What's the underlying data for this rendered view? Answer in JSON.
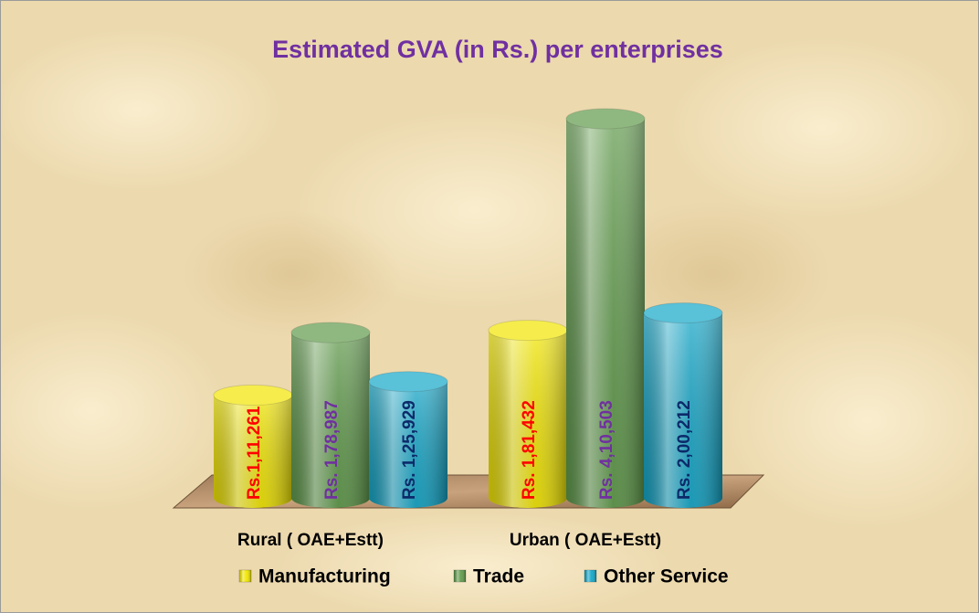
{
  "chart_data": {
    "type": "bar",
    "title": "Estimated GVA (in Rs.) per enterprises",
    "categories": [
      "Rural ( OAE+Estt)",
      "Urban ( OAE+Estt)"
    ],
    "series": [
      {
        "name": "Manufacturing",
        "color": "#f2e600",
        "label_color": "#ff0000",
        "values": [
          111261,
          181432
        ],
        "value_labels": [
          "Rs.1,11,261",
          "Rs. 1,81,432"
        ]
      },
      {
        "name": "Trade",
        "color": "#5f9a4a",
        "label_color": "#7030a0",
        "values": [
          178987,
          410503
        ],
        "value_labels": [
          "Rs. 1,78,987",
          "Rs. 4,10,503"
        ]
      },
      {
        "name": "Other Service",
        "color": "#12a6c8",
        "label_color": "#0c2a6a",
        "values": [
          125929,
          200212
        ],
        "value_labels": [
          "Rs. 1,25,929",
          "Rs. 2,00,212"
        ]
      }
    ]
  }
}
